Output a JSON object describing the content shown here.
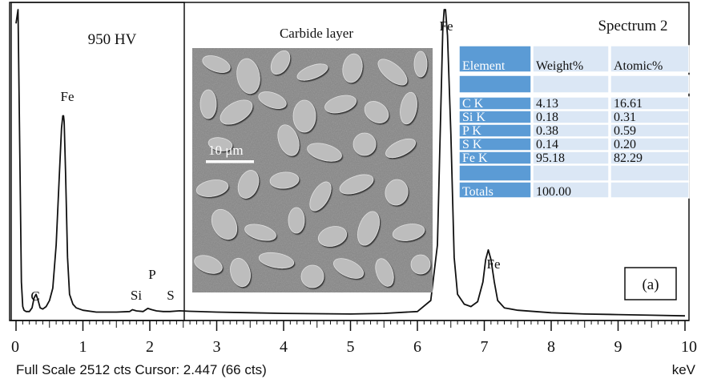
{
  "chart_data": {
    "type": "line",
    "title": "",
    "xlabel": "keV",
    "ylabel": "",
    "xlim": [
      0,
      10
    ],
    "ylim": [
      0,
      2512
    ],
    "x_ticks": [
      "0",
      "1",
      "2",
      "3",
      "4",
      "5",
      "6",
      "7",
      "8",
      "9",
      "10"
    ],
    "grid": false,
    "series": [
      {
        "x": [
          0.0,
          0.03,
          0.06,
          0.08,
          0.1,
          0.12,
          0.15,
          0.2,
          0.24,
          0.27,
          0.3,
          0.33,
          0.36,
          0.4,
          0.45,
          0.5,
          0.55,
          0.6,
          0.65,
          0.68,
          0.7,
          0.71,
          0.72,
          0.74,
          0.77,
          0.8,
          0.85,
          0.9,
          1.0,
          1.2,
          1.5,
          1.7,
          1.74,
          1.8,
          1.9,
          1.97,
          2.03,
          2.1,
          2.2,
          2.3,
          2.447,
          2.6,
          3.0,
          3.5,
          4.0,
          4.5,
          5.0,
          5.5,
          6.0,
          6.2,
          6.3,
          6.35,
          6.38,
          6.4,
          6.42,
          6.45,
          6.5,
          6.55,
          6.6,
          6.7,
          6.8,
          6.9,
          6.98,
          7.02,
          7.06,
          7.1,
          7.15,
          7.2,
          7.3,
          7.5,
          8.0,
          8.5,
          9.0,
          9.5,
          10.0
        ],
        "y": [
          2400,
          2512,
          1200,
          300,
          100,
          70,
          60,
          60,
          90,
          170,
          200,
          150,
          90,
          80,
          100,
          150,
          250,
          600,
          1200,
          1550,
          1650,
          1650,
          1600,
          1200,
          500,
          200,
          120,
          90,
          70,
          55,
          55,
          60,
          75,
          65,
          60,
          85,
          75,
          65,
          60,
          60,
          66,
          62,
          55,
          50,
          45,
          42,
          40,
          45,
          60,
          150,
          600,
          1700,
          2350,
          2512,
          2512,
          2300,
          1500,
          500,
          200,
          120,
          100,
          140,
          300,
          480,
          560,
          480,
          300,
          150,
          90,
          70,
          50,
          40,
          35,
          30,
          25
        ]
      }
    ],
    "peak_labels": [
      "C",
      "Fe",
      "Si",
      "P",
      "S",
      "Fe",
      "Fe"
    ],
    "annotations": {
      "hardness": "950 HV",
      "panel": "(a)",
      "footer": "Full Scale 2512 cts Cursor: 2.447 (66 cts)",
      "inset_title": "Carbide layer",
      "scale_bar": "10 μm",
      "spectrum": "Spectrum 2"
    }
  },
  "table": {
    "headers": [
      "Element",
      "Weight%",
      "Atomic%"
    ],
    "rows": [
      [
        "",
        "",
        ""
      ],
      [
        "C K",
        "4.13",
        "16.61"
      ],
      [
        "Si K",
        "0.18",
        "0.31"
      ],
      [
        "P K",
        "0.38",
        "0.59"
      ],
      [
        "S K",
        "0.14",
        "0.20"
      ],
      [
        "Fe K",
        "95.18",
        "82.29"
      ],
      [
        "",
        "",
        ""
      ],
      [
        "Totals",
        "100.00",
        ""
      ]
    ]
  },
  "colors": {
    "table_dark": "#5b9bd5",
    "table_light": "#dbe7f5",
    "line": "#111111",
    "sem_bg": "#8a8a8a"
  }
}
